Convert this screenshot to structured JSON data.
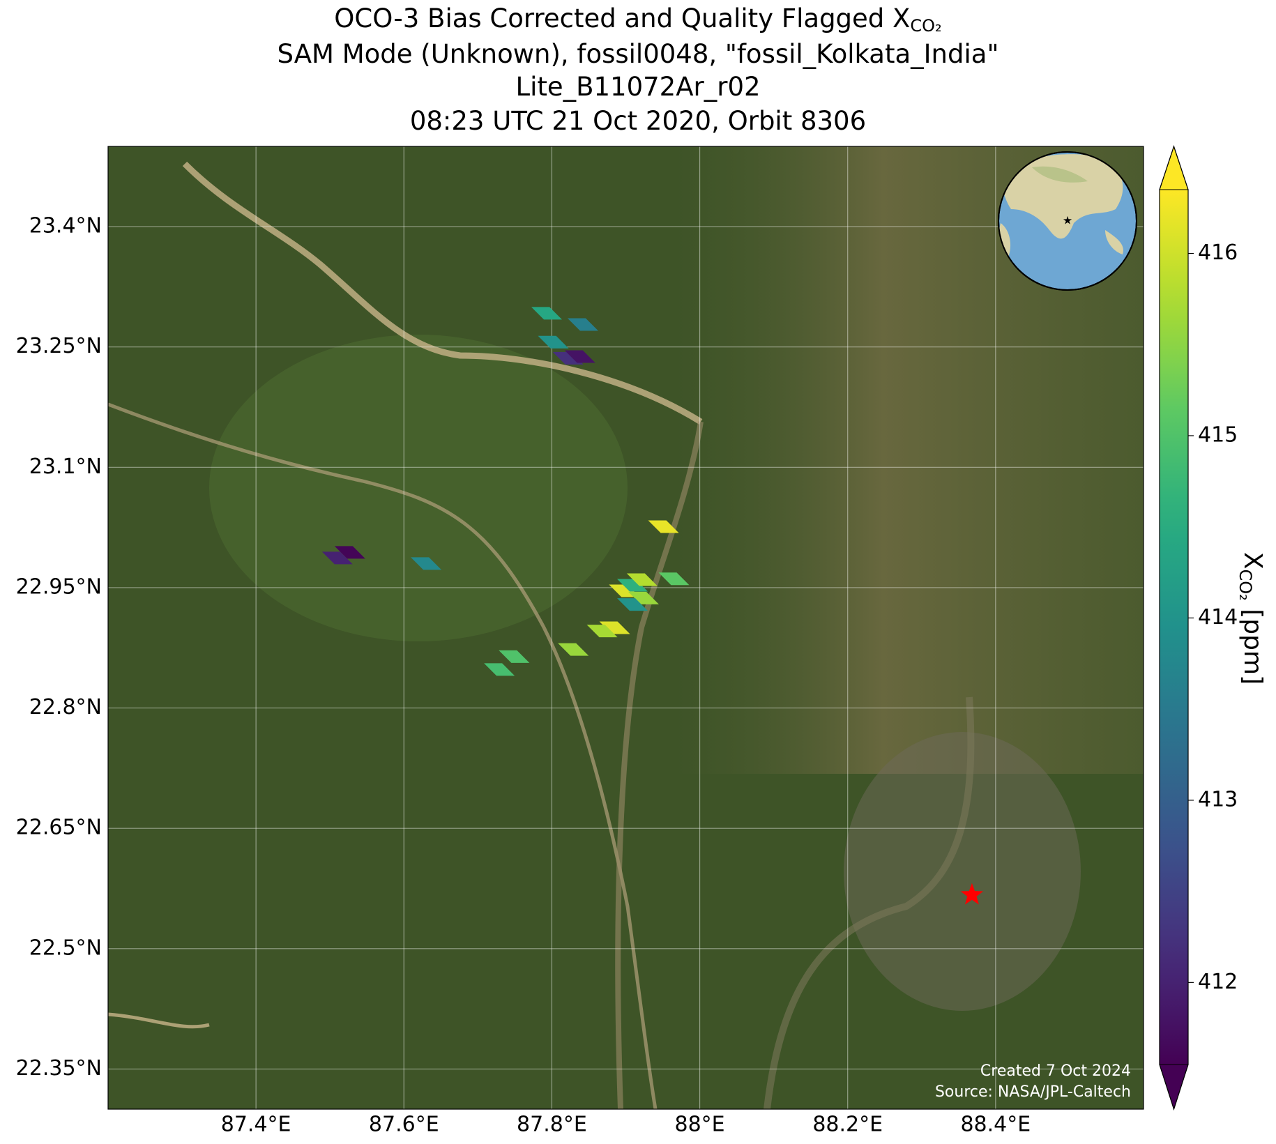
{
  "chart_data": {
    "type": "map",
    "title": [
      {
        "text": "OCO-3 Bias Corrected and Quality Flagged X",
        "subscript": "CO₂"
      },
      {
        "text": "SAM Mode (Unknown), fossil0048, \"fossil_Kolkata_India\""
      },
      {
        "text": "Lite_B11072Ar_r02"
      },
      {
        "text": "08:23 UTC 21 Oct 2020, Orbit 8306"
      }
    ],
    "xlim": [
      87.2,
      88.6
    ],
    "ylim": [
      22.3,
      23.5
    ],
    "xticks": [
      {
        "value": 87.4,
        "label": "87.4°E"
      },
      {
        "value": 87.6,
        "label": "87.6°E"
      },
      {
        "value": 87.8,
        "label": "87.8°E"
      },
      {
        "value": 88.0,
        "label": "88°E"
      },
      {
        "value": 88.2,
        "label": "88.2°E"
      },
      {
        "value": 88.4,
        "label": "88.4°E"
      }
    ],
    "yticks": [
      {
        "value": 22.35,
        "label": "22.35°N"
      },
      {
        "value": 22.5,
        "label": "22.5°N"
      },
      {
        "value": 22.65,
        "label": "22.65°N"
      },
      {
        "value": 22.8,
        "label": "22.8°N"
      },
      {
        "value": 22.95,
        "label": "22.95°N"
      },
      {
        "value": 23.1,
        "label": "23.1°N"
      },
      {
        "value": 23.25,
        "label": "23.25°N"
      },
      {
        "value": 23.4,
        "label": "23.4°N"
      }
    ],
    "grid": true,
    "colormap": "viridis",
    "colorbar": {
      "clim": [
        411.55,
        416.35
      ],
      "ticks": [
        412,
        413,
        414,
        415,
        416
      ],
      "label": {
        "text": "X",
        "subscript": "CO₂",
        "unit": "[ppm]"
      },
      "extend": "both"
    },
    "soundings": {
      "lon": [
        87.793,
        87.802,
        87.842,
        87.822,
        87.838,
        87.527,
        87.51,
        87.63,
        87.951,
        87.898,
        87.909,
        87.922,
        87.924,
        87.909,
        87.965,
        87.885,
        87.868,
        87.829,
        87.749,
        87.729
      ],
      "lat": [
        23.292,
        23.256,
        23.278,
        23.236,
        23.238,
        22.994,
        22.987,
        22.98,
        23.026,
        22.946,
        22.953,
        22.96,
        22.937,
        22.929,
        22.961,
        22.9,
        22.896,
        22.873,
        22.864,
        22.848
      ],
      "values": [
        414.4,
        414.0,
        413.6,
        412.2,
        411.8,
        411.6,
        412.0,
        413.8,
        416.2,
        416.1,
        414.6,
        415.8,
        415.6,
        414.0,
        415.1,
        416.1,
        415.7,
        415.6,
        415.0,
        414.9
      ]
    },
    "target": {
      "lon": 88.368,
      "lat": 22.567,
      "color": "#ff0000"
    },
    "annotations": [
      "Created 7 Oct 2024",
      "Source: NASA/JPL-Caltech"
    ]
  }
}
